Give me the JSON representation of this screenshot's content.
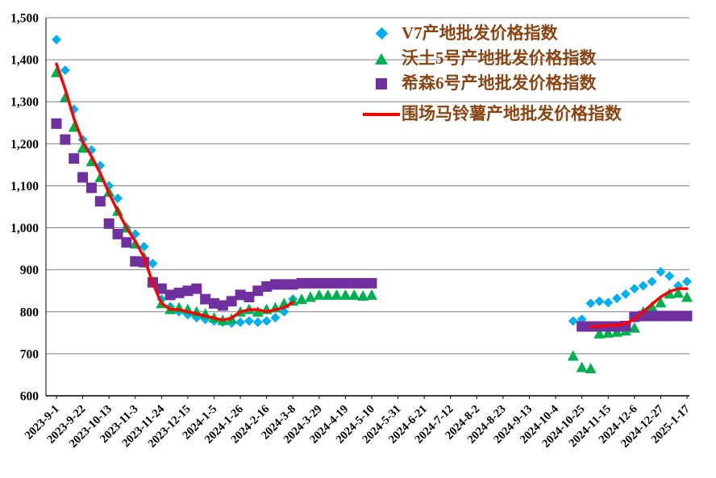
{
  "page": {
    "background": "#FFFFFF"
  },
  "chart_data": {
    "type": "scatter",
    "title": "",
    "xlabel": "",
    "ylabel": "",
    "ylim": [
      600,
      1500
    ],
    "y_tick_step": 100,
    "y_ticks": [
      "600",
      "700",
      "800",
      "900",
      "1,000",
      "1,100",
      "1,200",
      "1,300",
      "1,400",
      "1,500"
    ],
    "grid": "horizontal",
    "legend_position": "top-center-inside",
    "n_points": 73,
    "x_unit": "week",
    "x_start_date": "2023-9-1",
    "x_step_days": 7,
    "x_tick_every": 3,
    "x_tick_labels": [
      "2023-9-1",
      "2023-9-22",
      "2023-10-13",
      "2023-11-3",
      "2023-11-24",
      "2023-12-15",
      "2024-1-5",
      "2024-1-26",
      "2024-2-16",
      "2024-3-8",
      "2024-3-29",
      "2024-4-19",
      "2024-5-10",
      "2024-5-31",
      "2024-6-21",
      "2024-7-12",
      "2024-8-2",
      "2024-8-23",
      "2024-9-13",
      "2024-10-4",
      "2024-10-25",
      "2024-11-15",
      "2024-12-6",
      "2024-12-27",
      "2025-1-17"
    ],
    "colors": {
      "grid": "#808080",
      "axis": "#000000",
      "tick_text": "#000000",
      "legend_text": "#8B4513"
    },
    "series": [
      {
        "name": "V7产地批发价格指数",
        "marker": "diamond",
        "color": "#00B0F0",
        "segments": [
          {
            "start": 0,
            "values": [
              1448,
              1375,
              1282,
              1210,
              1185,
              1148,
              1100,
              1070,
              1000,
              985,
              955,
              915,
              830,
              812,
              800,
              793,
              786,
              782,
              778,
              775,
              773,
              775,
              778,
              775,
              778,
              786,
              800,
              830
            ]
          },
          {
            "start": 59,
            "values": [
              778,
              782,
              820,
              825,
              822,
              832,
              842,
              855,
              862,
              872,
              895,
              885,
              862,
              872
            ]
          }
        ]
      },
      {
        "name": "沃土5号产地批发价格指数",
        "marker": "triangle",
        "color": "#00B050",
        "segments": [
          {
            "start": 0,
            "values": [
              1370,
              1310,
              1240,
              1190,
              1158,
              1120,
              1085,
              1040,
              1000,
              962,
              930,
              870,
              820,
              806,
              810,
              806,
              800,
              795,
              786,
              780,
              783,
              800,
              806,
              800,
              806,
              810,
              820,
              826,
              830,
              835,
              840,
              840,
              840,
              840,
              840,
              838,
              840
            ]
          },
          {
            "start": 59,
            "values": [
              695,
              668,
              665,
              748,
              750,
              752,
              755,
              762,
              800,
              812,
              822,
              843,
              845,
              835
            ]
          }
        ]
      },
      {
        "name": "希森6号产地批发价格指数",
        "marker": "square",
        "color": "#7030A0",
        "segments": [
          {
            "start": 0,
            "values": [
              1248,
              1210,
              1165,
              1120,
              1095,
              1063,
              1010,
              985,
              965,
              920,
              918,
              870,
              855,
              840,
              845,
              850,
              855,
              830,
              820,
              815,
              825,
              840,
              835,
              850,
              860,
              865,
              865,
              865,
              868,
              868,
              868,
              868,
              868,
              868,
              868,
              868,
              868
            ]
          },
          {
            "start": 60,
            "values": [
              765,
              765,
              765,
              765,
              765,
              766,
              788,
              790,
              790,
              790,
              790,
              790,
              790
            ]
          }
        ]
      },
      {
        "name": "围场马铃薯产地批发价格指数",
        "marker": "line",
        "color": "#FF0000",
        "segments": [
          {
            "start": 0,
            "values": [
              1390,
              1330,
              1260,
              1205,
              1170,
              1130,
              1082,
              1040,
              1000,
              968,
              930,
              868,
              820,
              806,
              805,
              800,
              795,
              790,
              785,
              780,
              785,
              800,
              805,
              805,
              800,
              805,
              810,
              822
            ]
          },
          {
            "start": 61,
            "values": [
              765,
              765,
              768,
              768,
              772,
              782,
              800,
              818,
              835,
              848,
              855,
              855
            ]
          }
        ]
      }
    ]
  }
}
